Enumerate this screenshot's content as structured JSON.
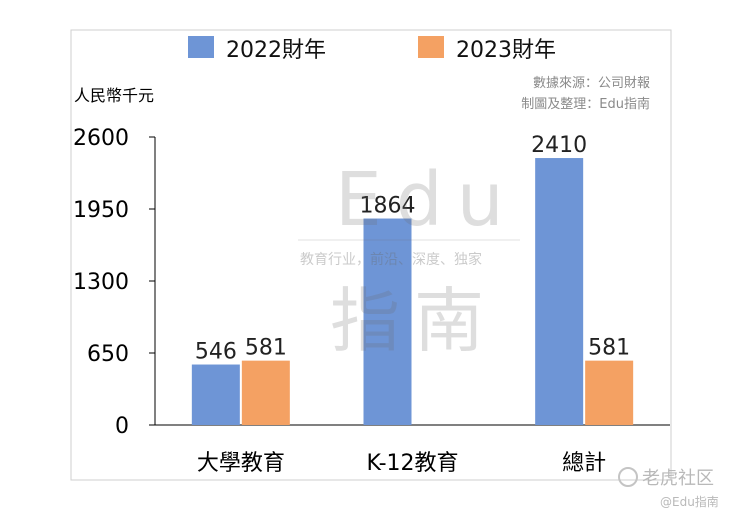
{
  "chart_data": {
    "type": "bar",
    "unit_label": "人民幣千元",
    "categories": [
      "大學教育",
      "K-12教育",
      "總計"
    ],
    "series": [
      {
        "name": "2022財年",
        "color": "#6e95d6",
        "values": [
          546,
          1864,
          2410
        ]
      },
      {
        "name": "2023財年",
        "color": "#f4a163",
        "values": [
          581,
          null,
          581
        ]
      }
    ],
    "yticks": [
      0,
      650,
      1300,
      1950,
      2600
    ],
    "ylim": [
      0,
      2600
    ],
    "grid": false,
    "legend_position": "top"
  },
  "source_lines": [
    "數據來源：公司財報",
    "制圖及整理：Edu指南"
  ],
  "watermark": {
    "logo_text": "Edu",
    "logo_text_2": "指南",
    "tagline": "教育行业，前沿、深度、独家"
  },
  "corner_brand": {
    "line1": "老虎社区",
    "line2": "@Edu指南"
  }
}
